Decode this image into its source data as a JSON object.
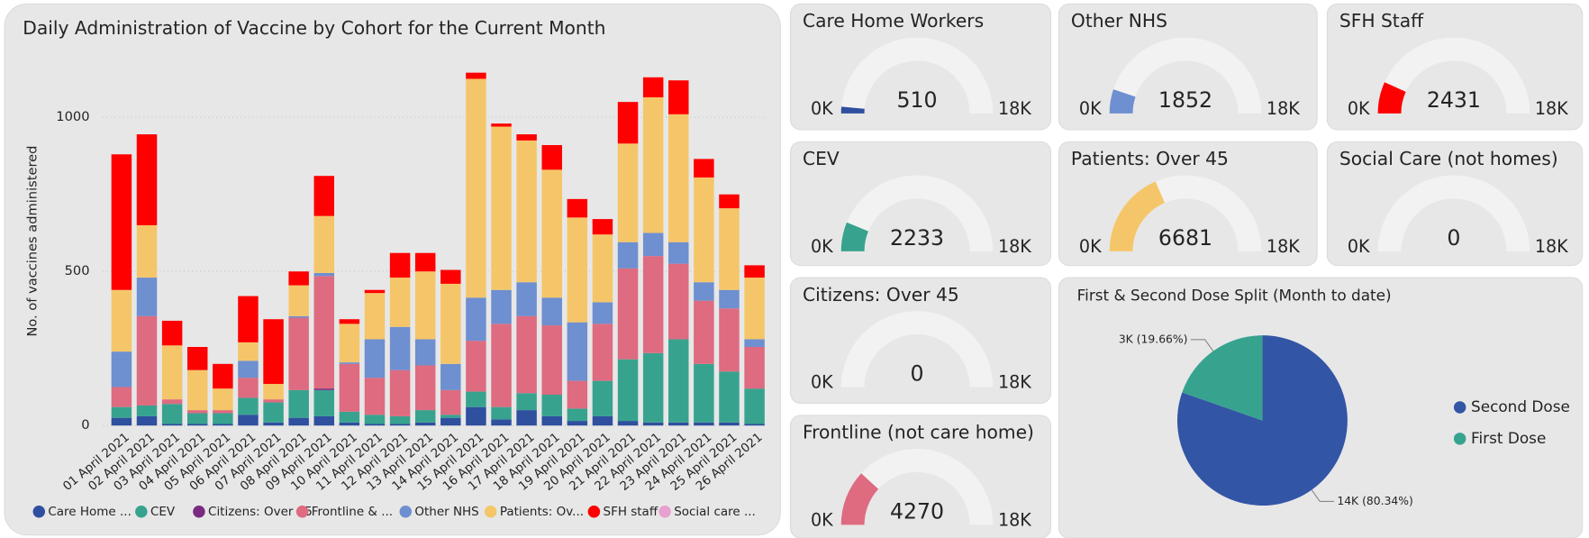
{
  "chart_data": [
    {
      "type": "bar",
      "stacked": true,
      "title": "Daily Administration of Vaccine by Cohort for the Current Month",
      "y_label": "No. of vaccines administered",
      "categories": [
        "01 April 2021",
        "02 April 2021",
        "03 April 2021",
        "04 April 2021",
        "05 April 2021",
        "06 April 2021",
        "07 April 2021",
        "08 April 2021",
        "09 April 2021",
        "10 April 2021",
        "11 April 2021",
        "12 April 2021",
        "13 April 2021",
        "14 April 2021",
        "15 April 2021",
        "16 April 2021",
        "17 April 2021",
        "18 April 2021",
        "19 April 2021",
        "20 April 2021",
        "21 April 2021",
        "22 April 2021",
        "23 April 2021",
        "24 April 2021",
        "25 April 2021",
        "26 April 2021"
      ],
      "series": [
        {
          "name": "Care Home ...",
          "color": "#2f4f9f",
          "values": [
            25,
            30,
            5,
            5,
            5,
            35,
            10,
            25,
            30,
            10,
            5,
            5,
            10,
            25,
            60,
            20,
            50,
            30,
            15,
            30,
            15,
            10,
            10,
            10,
            10,
            5
          ]
        },
        {
          "name": "CEV",
          "color": "#37a38f",
          "values": [
            35,
            35,
            65,
            35,
            35,
            55,
            65,
            90,
            85,
            35,
            30,
            25,
            40,
            10,
            50,
            40,
            55,
            70,
            40,
            115,
            200,
            225,
            270,
            190,
            165,
            115
          ]
        },
        {
          "name": "Citizens: Over 45",
          "color": "#7a2a80",
          "values": [
            0,
            0,
            0,
            0,
            0,
            0,
            0,
            0,
            5,
            0,
            0,
            0,
            0,
            0,
            0,
            0,
            0,
            0,
            0,
            0,
            0,
            0,
            0,
            0,
            0,
            0
          ]
        },
        {
          "name": "Frontline & ...",
          "color": "#de6b80",
          "values": [
            65,
            290,
            15,
            10,
            10,
            65,
            10,
            235,
            365,
            155,
            120,
            150,
            145,
            80,
            165,
            270,
            250,
            225,
            90,
            185,
            295,
            315,
            245,
            205,
            205,
            135
          ]
        },
        {
          "name": "Other NHS",
          "color": "#6e8fd0",
          "values": [
            115,
            125,
            0,
            0,
            0,
            55,
            0,
            5,
            10,
            5,
            125,
            140,
            85,
            85,
            140,
            110,
            110,
            90,
            190,
            70,
            85,
            75,
            70,
            60,
            60,
            25
          ]
        },
        {
          "name": "Patients: Ov...",
          "color": "#f5c669",
          "values": [
            200,
            170,
            175,
            130,
            70,
            60,
            50,
            100,
            185,
            125,
            150,
            160,
            220,
            260,
            710,
            530,
            460,
            415,
            340,
            220,
            320,
            440,
            415,
            340,
            265,
            200
          ]
        },
        {
          "name": "SFH staff",
          "color": "#ff0000",
          "values": [
            440,
            295,
            80,
            75,
            80,
            150,
            210,
            45,
            130,
            15,
            10,
            80,
            60,
            45,
            20,
            10,
            20,
            80,
            60,
            50,
            135,
            65,
            110,
            60,
            45,
            40
          ]
        },
        {
          "name": "Social care ...",
          "color": "#e8a0d0",
          "values": [
            0,
            0,
            0,
            0,
            0,
            0,
            0,
            0,
            0,
            0,
            0,
            0,
            0,
            0,
            0,
            0,
            0,
            0,
            0,
            0,
            0,
            0,
            0,
            0,
            0,
            0
          ]
        }
      ],
      "ylim": [
        0,
        1200
      ],
      "yticks": [
        0,
        500,
        1000
      ],
      "grid": true
    },
    {
      "type": "gauge",
      "title": "Care Home Workers",
      "value": 510,
      "color": "#2f4f9f",
      "min": {
        "value": 0,
        "label": "0K"
      },
      "max": {
        "value": 18000,
        "label": "18K"
      }
    },
    {
      "type": "gauge",
      "title": "Other NHS",
      "value": 1852,
      "color": "#6e8fd0",
      "min": {
        "value": 0,
        "label": "0K"
      },
      "max": {
        "value": 18000,
        "label": "18K"
      }
    },
    {
      "type": "gauge",
      "title": "SFH Staff",
      "value": 2431,
      "color": "#ff0000",
      "min": {
        "value": 0,
        "label": "0K"
      },
      "max": {
        "value": 18000,
        "label": "18K"
      }
    },
    {
      "type": "gauge",
      "title": "CEV",
      "value": 2233,
      "color": "#37a38f",
      "min": {
        "value": 0,
        "label": "0K"
      },
      "max": {
        "value": 18000,
        "label": "18K"
      }
    },
    {
      "type": "gauge",
      "title": "Patients: Over 45",
      "value": 6681,
      "color": "#f5c669",
      "min": {
        "value": 0,
        "label": "0K"
      },
      "max": {
        "value": 18000,
        "label": "18K"
      }
    },
    {
      "type": "gauge",
      "title": "Social Care (not homes)",
      "value": 0,
      "color": "#e8a0d0",
      "min": {
        "value": 0,
        "label": "0K"
      },
      "max": {
        "value": 18000,
        "label": "18K"
      }
    },
    {
      "type": "gauge",
      "title": "Citizens: Over 45",
      "value": 0,
      "color": "#7a2a80",
      "min": {
        "value": 0,
        "label": "0K"
      },
      "max": {
        "value": 18000,
        "label": "18K"
      }
    },
    {
      "type": "gauge",
      "title": "Frontline (not care home)",
      "value": 4270,
      "color": "#de6b80",
      "min": {
        "value": 0,
        "label": "0K"
      },
      "max": {
        "value": 18000,
        "label": "18K"
      }
    },
    {
      "type": "pie",
      "title": "First & Second Dose Split (Month to date)",
      "categories": [
        "Second Dose",
        "First Dose"
      ],
      "values": [
        80.34,
        19.66
      ],
      "value_labels": [
        "14K (80.34%)",
        "3K (19.66%)"
      ],
      "colors": [
        "#3355a5",
        "#37a38f"
      ]
    }
  ]
}
